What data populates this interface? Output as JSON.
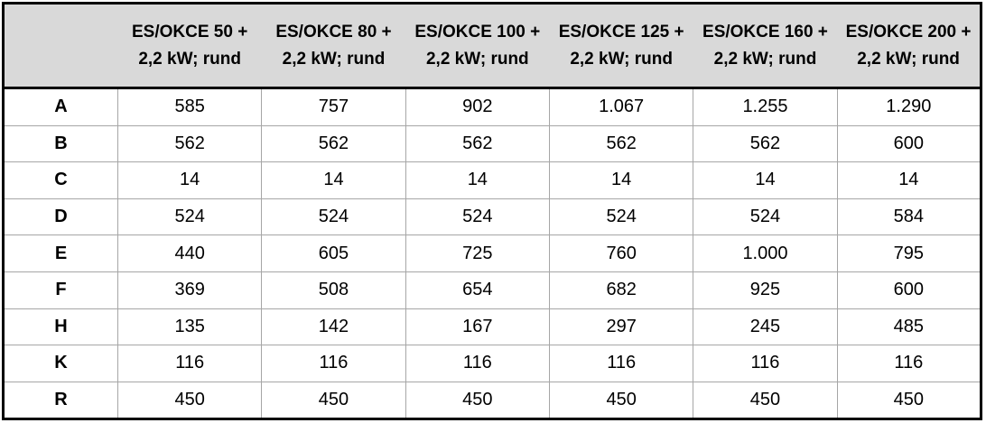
{
  "table": {
    "columns": [
      "ES/OKCE 50 +\n2,2 kW; rund",
      "ES/OKCE 80 +\n2,2 kW; rund",
      "ES/OKCE 100 +\n2,2 kW; rund",
      "ES/OKCE 125 +\n2,2 kW; rund",
      "ES/OKCE 160 +\n2,2 kW; rund",
      "ES/OKCE 200 +\n2,2 kW; rund"
    ],
    "rows": [
      [
        "A",
        "585",
        "757",
        "902",
        "1.067",
        "1.255",
        "1.290"
      ],
      [
        "B",
        "562",
        "562",
        "562",
        "562",
        "562",
        "600"
      ],
      [
        "C",
        "14",
        "14",
        "14",
        "14",
        "14",
        "14"
      ],
      [
        "D",
        "524",
        "524",
        "524",
        "524",
        "524",
        "584"
      ],
      [
        "E",
        "440",
        "605",
        "725",
        "760",
        "1.000",
        "795"
      ],
      [
        "F",
        "369",
        "508",
        "654",
        "682",
        "925",
        "600"
      ],
      [
        "H",
        "135",
        "142",
        "167",
        "297",
        "245",
        "485"
      ],
      [
        "K",
        "116",
        "116",
        "116",
        "116",
        "116",
        "116"
      ],
      [
        "R",
        "450",
        "450",
        "450",
        "450",
        "450",
        "450"
      ]
    ]
  }
}
